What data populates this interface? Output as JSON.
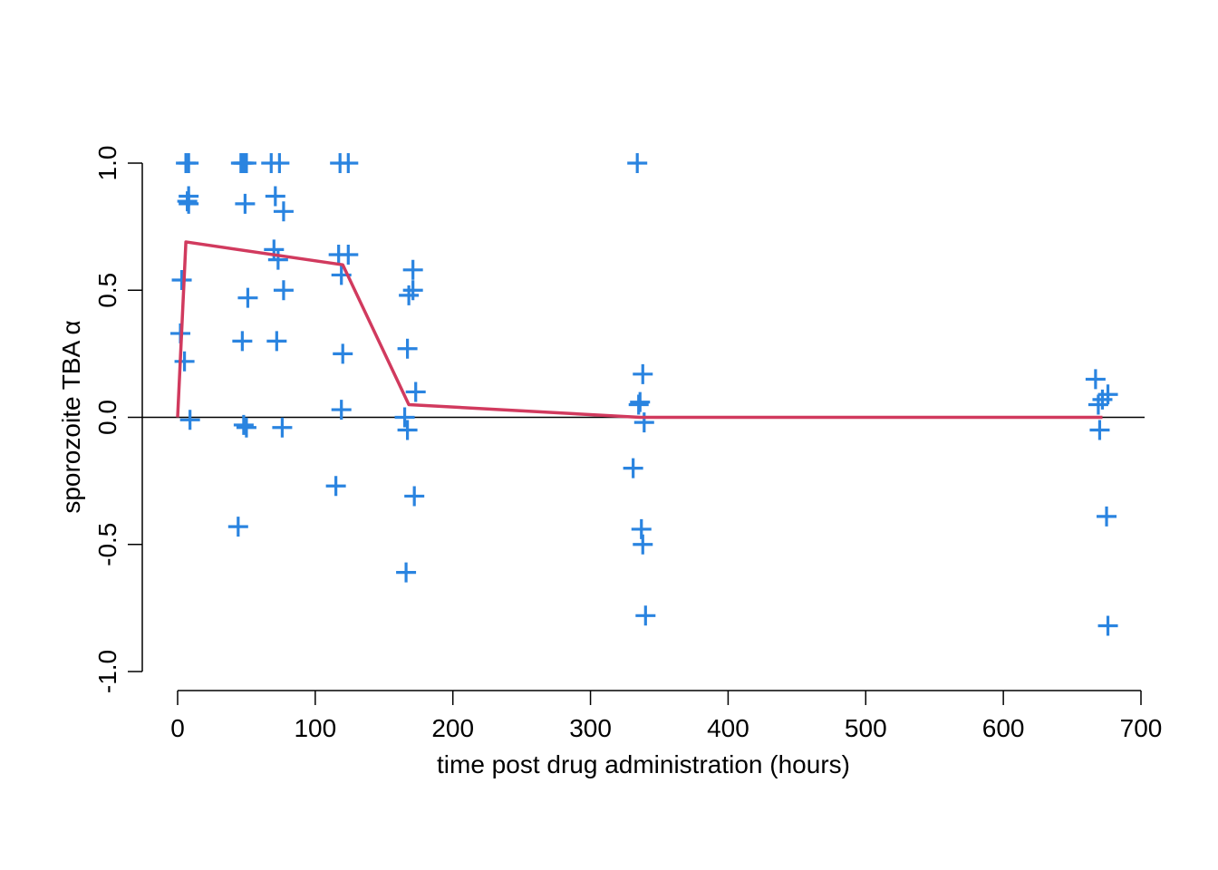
{
  "chart_data": {
    "type": "scatter",
    "xlabel": "time post drug administration (hours)",
    "ylabel": "sporozoite TBA α",
    "xlim": [
      0,
      700
    ],
    "ylim": [
      -1.0,
      1.0
    ],
    "x_ticks": [
      0,
      100,
      200,
      300,
      400,
      500,
      600,
      700
    ],
    "x_tick_labels": [
      "0",
      "100",
      "200",
      "300",
      "400",
      "500",
      "600",
      "700"
    ],
    "y_ticks": [
      -1.0,
      -0.5,
      0.0,
      0.5,
      1.0
    ],
    "y_tick_labels": [
      "-1.0",
      "-0.5",
      "0.0",
      "0.5",
      "1.0"
    ],
    "reference_line_y": 0,
    "grid": false,
    "series": [
      {
        "kind": "points",
        "marker": "+",
        "color": "#2a84e0",
        "points": [
          [
            6,
            1.0
          ],
          [
            8,
            1.0
          ],
          [
            8,
            0.87
          ],
          [
            7,
            0.85
          ],
          [
            8,
            0.84
          ],
          [
            3,
            0.54
          ],
          [
            2,
            0.33
          ],
          [
            5,
            0.22
          ],
          [
            9,
            -0.01
          ],
          [
            46,
            1.0
          ],
          [
            48,
            1.0
          ],
          [
            47,
            1.0
          ],
          [
            50,
            1.0
          ],
          [
            49,
            0.84
          ],
          [
            51,
            0.47
          ],
          [
            47,
            0.3
          ],
          [
            48,
            -0.03
          ],
          [
            50,
            -0.04
          ],
          [
            44,
            -0.43
          ],
          [
            68,
            1.0
          ],
          [
            74,
            1.0
          ],
          [
            71,
            0.87
          ],
          [
            77,
            0.81
          ],
          [
            70,
            0.66
          ],
          [
            73,
            0.62
          ],
          [
            77,
            0.5
          ],
          [
            72,
            0.3
          ],
          [
            76,
            -0.04
          ],
          [
            118,
            1.0
          ],
          [
            124,
            1.0
          ],
          [
            117,
            0.64
          ],
          [
            124,
            0.64
          ],
          [
            119,
            0.56
          ],
          [
            120,
            0.25
          ],
          [
            119,
            0.03
          ],
          [
            115,
            -0.27
          ],
          [
            171,
            0.58
          ],
          [
            168,
            0.48
          ],
          [
            171,
            0.5
          ],
          [
            167,
            0.27
          ],
          [
            173,
            0.1
          ],
          [
            165,
            0.0
          ],
          [
            167,
            -0.05
          ],
          [
            172,
            -0.31
          ],
          [
            166,
            -0.61
          ],
          [
            334,
            1.0
          ],
          [
            338,
            0.17
          ],
          [
            336,
            0.06
          ],
          [
            335,
            0.05
          ],
          [
            339,
            -0.02
          ],
          [
            331,
            -0.2
          ],
          [
            337,
            -0.44
          ],
          [
            338,
            -0.5
          ],
          [
            340,
            -0.78
          ],
          [
            667,
            0.15
          ],
          [
            669,
            0.05
          ],
          [
            672,
            0.07
          ],
          [
            676,
            0.09
          ],
          [
            670,
            -0.05
          ],
          [
            675,
            -0.39
          ],
          [
            676,
            -0.82
          ]
        ]
      },
      {
        "kind": "line",
        "color": "#d13a5e",
        "points": [
          [
            0,
            0.0
          ],
          [
            6,
            0.69
          ],
          [
            120,
            0.6
          ],
          [
            168,
            0.05
          ],
          [
            336,
            0.0
          ],
          [
            672,
            0.0
          ]
        ]
      }
    ]
  }
}
